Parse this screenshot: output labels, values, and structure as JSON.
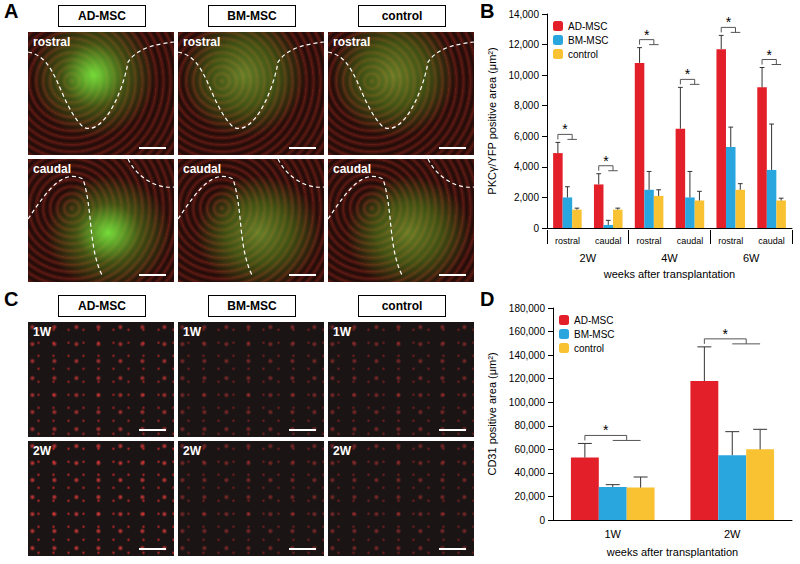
{
  "panel_labels": [
    "A",
    "B",
    "C",
    "D"
  ],
  "image_panels": [
    {
      "columns": [
        "AD-MSC",
        "BM-MSC",
        "control"
      ],
      "rows": [
        "rostral",
        "caudal"
      ]
    },
    {
      "columns": [
        "AD-MSC",
        "BM-MSC",
        "control"
      ],
      "rows": [
        "1W",
        "2W"
      ]
    }
  ],
  "chart_data": [
    {
      "type": "bar",
      "categories": [
        "rostral",
        "caudal",
        "rostral",
        "caudal",
        "rostral",
        "caudal"
      ],
      "groups": [
        "2W",
        "4W",
        "6W"
      ],
      "x_label": "weeks after transplantation",
      "y_label": "PKCγ/YFP positive area (μm²)",
      "ylim": [
        0,
        14000
      ],
      "yticks": [
        0,
        {
          "value": 2000,
          "label": "2,000"
        },
        {
          "value": 4000,
          "label": "4,000"
        },
        {
          "value": 6000,
          "label": "6,000"
        },
        {
          "value": 8000,
          "label": "8,000"
        },
        {
          "value": 10000,
          "label": "10,000"
        },
        {
          "value": 12000,
          "label": "12,000"
        },
        {
          "value": 14000,
          "label": "14,000"
        }
      ],
      "grid": false,
      "legend": "upper left",
      "series": [
        {
          "name": "AD-MSC",
          "color": "#e3202a",
          "values": [
            4900,
            2850,
            10800,
            6500,
            11700,
            9200
          ],
          "errors": [
            700,
            700,
            1000,
            2700,
            900,
            1300
          ]
        },
        {
          "name": "BM-MSC",
          "color": "#2aa6df",
          "values": [
            2000,
            200,
            2500,
            2000,
            5300,
            3800
          ],
          "errors": [
            700,
            300,
            1200,
            1700,
            1300,
            3000
          ]
        },
        {
          "name": "control",
          "color": "#f8c232",
          "values": [
            1200,
            1200,
            2100,
            1800,
            2500,
            1800
          ],
          "errors": [
            100,
            100,
            400,
            600,
            400,
            150
          ]
        }
      ],
      "significance": [
        "*",
        "*",
        "*",
        "*",
        "*",
        "*"
      ]
    },
    {
      "type": "bar",
      "categories": [
        "1W",
        "2W"
      ],
      "x_label": "weeks after transplantation",
      "y_label": "CD31 positive area (μm²)",
      "ylim": [
        0,
        180000
      ],
      "yticks": [
        0,
        {
          "value": 20000,
          "label": "20,000"
        },
        {
          "value": 40000,
          "label": "40,000"
        },
        {
          "value": 60000,
          "label": "60,000"
        },
        {
          "value": 80000,
          "label": "80,000"
        },
        {
          "value": 100000,
          "label": "100,000"
        },
        {
          "value": 120000,
          "label": "120,000"
        },
        {
          "value": 140000,
          "label": "140,000"
        },
        {
          "value": 160000,
          "label": "160,000"
        },
        {
          "value": 180000,
          "label": "180,000"
        }
      ],
      "grid": false,
      "legend": "upper left",
      "series": [
        {
          "name": "AD-MSC",
          "color": "#e3202a",
          "values": [
            53000,
            118000
          ],
          "errors": [
            12000,
            29000
          ]
        },
        {
          "name": "BM-MSC",
          "color": "#2aa6df",
          "values": [
            28000,
            55000
          ],
          "errors": [
            2000,
            20000
          ]
        },
        {
          "name": "control",
          "color": "#f8c232",
          "values": [
            27500,
            60000
          ],
          "errors": [
            9000,
            17000
          ]
        }
      ],
      "significance": [
        "*",
        "*"
      ]
    }
  ]
}
